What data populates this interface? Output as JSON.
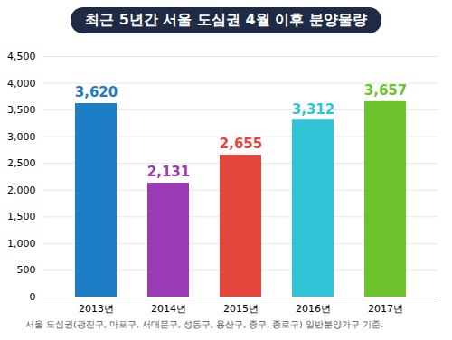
{
  "chart_data": {
    "type": "bar",
    "title": "최근 5년간 서울 도심권 4월 이후 분양물량",
    "categories": [
      "2013년",
      "2014년",
      "2015년",
      "2016년",
      "2017년"
    ],
    "values": [
      3620,
      2131,
      2655,
      3312,
      3657
    ],
    "value_labels": [
      "3,620",
      "2,131",
      "2,655",
      "3,312",
      "3,657"
    ],
    "colors": [
      "#1c7cc4",
      "#9a3bb5",
      "#e5463b",
      "#2fc3d6",
      "#6cc22b"
    ],
    "ylim": [
      0,
      4500
    ],
    "yticks": [
      0,
      500,
      {
        "value": 1000,
        "label": "1,000"
      },
      {
        "value": 1500,
        "label": "1,500"
      },
      {
        "value": 2000,
        "label": "2,000"
      },
      {
        "value": 2500,
        "label": "2,500"
      },
      {
        "value": 3000,
        "label": "3,000"
      },
      {
        "value": 3500,
        "label": "3,500"
      },
      {
        "value": 4000,
        "label": "4,000"
      },
      {
        "value": 4500,
        "label": "4,500"
      }
    ],
    "grid": true,
    "data_labels": true,
    "annotations": [
      "서울 도심권(광진구, 마포구, 서대문구, 성동구, 용산구, 중구, 종로구) 일반분양가구 기준."
    ]
  }
}
